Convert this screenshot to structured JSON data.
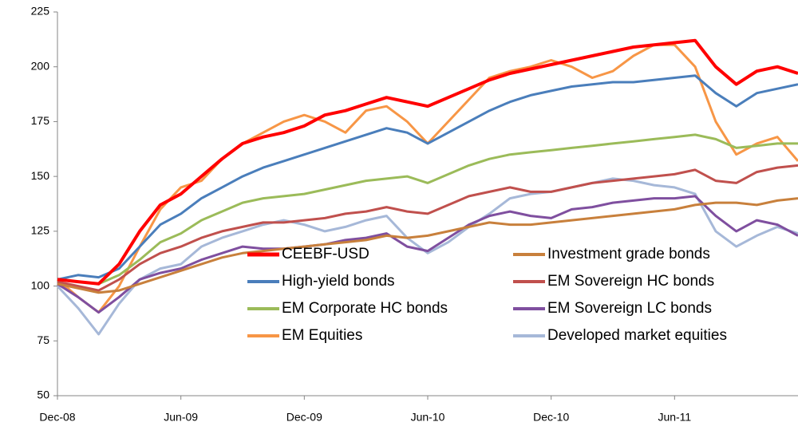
{
  "chart_data": {
    "type": "line",
    "x": [
      "2008-12",
      "2009-01",
      "2009-02",
      "2009-03",
      "2009-04",
      "2009-05",
      "2009-06",
      "2009-07",
      "2009-08",
      "2009-09",
      "2009-10",
      "2009-11",
      "2009-12",
      "2010-01",
      "2010-02",
      "2010-03",
      "2010-04",
      "2010-05",
      "2010-06",
      "2010-07",
      "2010-08",
      "2010-09",
      "2010-10",
      "2010-11",
      "2010-12",
      "2011-01",
      "2011-02",
      "2011-03",
      "2011-04",
      "2011-05",
      "2011-06",
      "2011-07",
      "2011-08",
      "2011-09",
      "2011-10",
      "2011-11",
      "2011-12"
    ],
    "xlim": [
      "2008-12",
      "2011-12"
    ],
    "xticks": [
      {
        "value": "2008-12",
        "label": "Dec-08"
      },
      {
        "value": "2009-06",
        "label": "Jun-09"
      },
      {
        "value": "2009-12",
        "label": "Dec-09"
      },
      {
        "value": "2010-06",
        "label": "Jun-10"
      },
      {
        "value": "2010-12",
        "label": "Dec-10"
      },
      {
        "value": "2011-06",
        "label": "Jun-11"
      }
    ],
    "ylim": [
      50,
      225
    ],
    "yticks": [
      50,
      75,
      100,
      125,
      150,
      175,
      200,
      225
    ],
    "grid": false,
    "legend": "bottom",
    "series": [
      {
        "name": "CEEBF-USD",
        "color": "#ff0000",
        "values": [
          103,
          102,
          101,
          110,
          125,
          137,
          142,
          150,
          158,
          165,
          168,
          170,
          173,
          178,
          180,
          183,
          186,
          184,
          182,
          186,
          190,
          194,
          197,
          199,
          201,
          203,
          205,
          207,
          209,
          210,
          211,
          212,
          200,
          192,
          198,
          200,
          197
        ]
      },
      {
        "name": "Investment grade bonds",
        "color": "#c8803c",
        "values": [
          101,
          99,
          97,
          98,
          101,
          104,
          107,
          110,
          113,
          115,
          116,
          117,
          118,
          119,
          120,
          121,
          123,
          122,
          123,
          125,
          127,
          129,
          128,
          128,
          129,
          130,
          131,
          132,
          133,
          134,
          135,
          137,
          138,
          138,
          137,
          139,
          140
        ]
      },
      {
        "name": "High-yield bonds",
        "color": "#4a7ebb",
        "values": [
          103,
          105,
          104,
          108,
          118,
          128,
          133,
          140,
          145,
          150,
          154,
          157,
          160,
          163,
          166,
          169,
          172,
          170,
          165,
          170,
          175,
          180,
          184,
          187,
          189,
          191,
          192,
          193,
          193,
          194,
          195,
          196,
          188,
          182,
          188,
          190,
          192
        ]
      },
      {
        "name": "EM Sovereign HC bonds",
        "color": "#c0504d",
        "values": [
          102,
          100,
          98,
          103,
          110,
          115,
          118,
          122,
          125,
          127,
          129,
          129,
          130,
          131,
          133,
          134,
          136,
          134,
          133,
          137,
          141,
          143,
          145,
          143,
          143,
          145,
          147,
          148,
          149,
          150,
          151,
          153,
          148,
          147,
          152,
          154,
          155
        ]
      },
      {
        "name": "EM Corporate HC bonds",
        "color": "#9bbb59",
        "values": [
          103,
          102,
          101,
          105,
          112,
          120,
          124,
          130,
          134,
          138,
          140,
          141,
          142,
          144,
          146,
          148,
          149,
          150,
          147,
          151,
          155,
          158,
          160,
          161,
          162,
          163,
          164,
          165,
          166,
          167,
          168,
          169,
          167,
          163,
          164,
          165,
          165
        ]
      },
      {
        "name": "EM Sovereign LC bonds",
        "color": "#7f4f9f",
        "values": [
          101,
          95,
          88,
          95,
          103,
          106,
          108,
          112,
          115,
          118,
          117,
          117,
          118,
          119,
          121,
          122,
          124,
          118,
          116,
          122,
          128,
          132,
          134,
          132,
          131,
          135,
          136,
          138,
          139,
          140,
          140,
          141,
          132,
          125,
          130,
          128,
          123
        ]
      },
      {
        "name": "EM Equities",
        "color": "#f79646",
        "values": [
          103,
          95,
          88,
          100,
          118,
          135,
          145,
          148,
          158,
          165,
          170,
          175,
          178,
          175,
          170,
          180,
          182,
          175,
          165,
          175,
          185,
          195,
          198,
          200,
          203,
          200,
          195,
          198,
          205,
          210,
          210,
          200,
          175,
          160,
          165,
          168,
          157
        ]
      },
      {
        "name": "Developed market equities",
        "color": "#a6b8d8",
        "values": [
          100,
          90,
          78,
          92,
          103,
          108,
          110,
          118,
          122,
          125,
          128,
          130,
          128,
          125,
          127,
          130,
          132,
          122,
          115,
          120,
          127,
          133,
          140,
          142,
          143,
          145,
          147,
          149,
          148,
          146,
          145,
          142,
          125,
          118,
          123,
          127,
          124
        ]
      }
    ]
  }
}
